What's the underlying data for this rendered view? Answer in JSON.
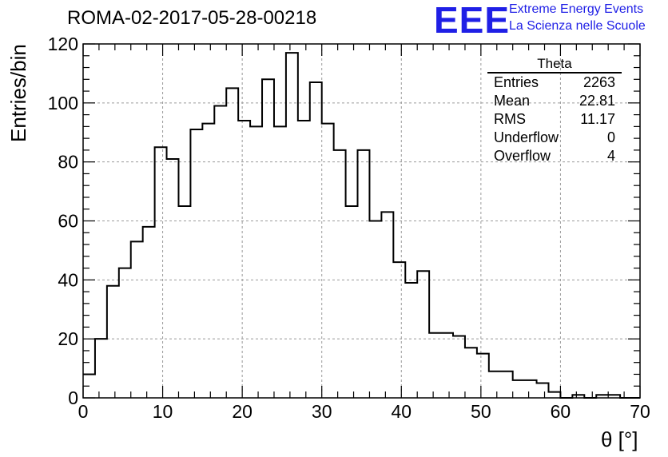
{
  "title": "ROMA-02-2017-05-28-00218",
  "logo": {
    "mark": "EEE",
    "line1": "Extreme Energy Events",
    "line2": "La Scienza nelle Scuole"
  },
  "stats": {
    "title": "Theta",
    "rows": [
      {
        "label": "Entries",
        "value": "2263"
      },
      {
        "label": "Mean",
        "value": "22.81"
      },
      {
        "label": "RMS",
        "value": "11.17"
      },
      {
        "label": "Underflow",
        "value": "0"
      },
      {
        "label": "Overflow",
        "value": "4"
      }
    ]
  },
  "colors": {
    "logo": "#1f1fe6",
    "line": "#000000",
    "grid": "#9a9a9a"
  },
  "chart_data": {
    "type": "histogram",
    "xlabel": "θ [°]",
    "ylabel": "Entries/bin",
    "xlim": [
      0,
      70
    ],
    "ylim": [
      0,
      120
    ],
    "xticks": [
      0,
      10,
      20,
      30,
      40,
      50,
      60,
      70
    ],
    "yticks": [
      0,
      20,
      40,
      60,
      80,
      100,
      120
    ],
    "grid": true,
    "bin_width": 1.5,
    "bin_start": 0,
    "values": [
      8,
      20,
      38,
      44,
      53,
      58,
      85,
      81,
      65,
      91,
      93,
      99,
      105,
      94,
      92,
      108,
      92,
      117,
      94,
      107,
      93,
      84,
      65,
      84,
      60,
      63,
      46,
      39,
      43,
      22,
      22,
      21,
      17,
      15,
      9,
      9,
      6,
      6,
      5,
      2,
      0,
      1,
      0,
      1,
      1,
      0,
      0
    ]
  }
}
